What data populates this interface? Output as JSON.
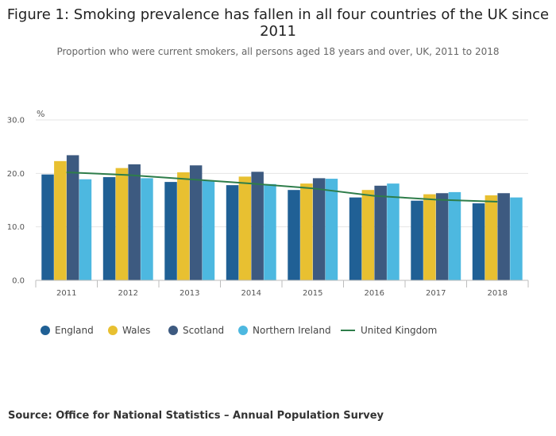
{
  "chart_data": {
    "type": "bar",
    "title_line1": "Figure 1: Smoking prevalence has fallen in all four countries of the UK since",
    "title_line2": "2011",
    "subtitle": "Proportion who were current smokers, all persons aged 18 years and over, UK, 2011 to 2018",
    "y_unit": "%",
    "ylim": [
      0,
      30
    ],
    "y_ticks": [
      "0.0",
      "10.0",
      "20.0",
      "30.0"
    ],
    "categories": [
      "2011",
      "2012",
      "2013",
      "2014",
      "2015",
      "2016",
      "2017",
      "2018"
    ],
    "series": [
      {
        "name": "England",
        "type": "bar",
        "color": "#206095",
        "values": [
          19.8,
          19.3,
          18.4,
          17.8,
          16.9,
          15.5,
          14.9,
          14.4
        ]
      },
      {
        "name": "Wales",
        "type": "bar",
        "color": "#e8c031",
        "values": [
          22.3,
          21.0,
          20.2,
          19.4,
          18.1,
          16.9,
          16.1,
          15.9
        ]
      },
      {
        "name": "Scotland",
        "type": "bar",
        "color": "#3d5a80",
        "values": [
          23.4,
          21.7,
          21.5,
          20.3,
          19.1,
          17.7,
          16.3,
          16.3
        ]
      },
      {
        "name": "Northern Ireland",
        "type": "bar",
        "color": "#4db8e0",
        "values": [
          18.9,
          19.1,
          18.6,
          18.0,
          19.0,
          18.1,
          16.5,
          15.5
        ]
      },
      {
        "name": "United Kingdom",
        "type": "line",
        "color": "#2e7d4a",
        "values": [
          20.2,
          19.7,
          18.9,
          18.1,
          17.2,
          15.8,
          15.1,
          14.7
        ]
      }
    ],
    "grid": true,
    "legend_position": "bottom"
  },
  "source": "Source: Office for National Statistics – Annual Population Survey"
}
